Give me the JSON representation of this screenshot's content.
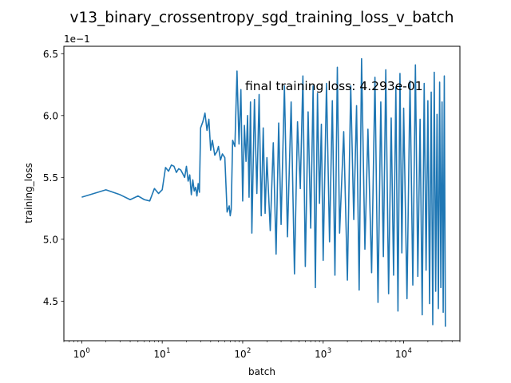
{
  "chart_data": {
    "type": "line",
    "title": "v13_binary_crossentropy_sgd_training_loss_v_batch",
    "xlabel": "batch",
    "ylabel": "training_loss",
    "x_scale": "log",
    "xlim": [
      0.6,
      50000
    ],
    "ylim": [
      0.418,
      0.656
    ],
    "y_offset_label": "1e−1",
    "annotation": "final training loss: 4.293e-01",
    "grid": false,
    "line_color": "#1f77b4",
    "xticks": [
      {
        "value": 1,
        "label": "10",
        "exp": "0"
      },
      {
        "value": 10,
        "label": "10",
        "exp": "1"
      },
      {
        "value": 100,
        "label": "10",
        "exp": "2"
      },
      {
        "value": 1000,
        "label": "10",
        "exp": "3"
      },
      {
        "value": 10000,
        "label": "10",
        "exp": "4"
      }
    ],
    "yticks": [
      {
        "value": 0.45,
        "label": "4.5"
      },
      {
        "value": 0.5,
        "label": "5.0"
      },
      {
        "value": 0.55,
        "label": "5.5"
      },
      {
        "value": 0.6,
        "label": "6.0"
      },
      {
        "value": 0.65,
        "label": "6.5"
      }
    ],
    "series": [
      {
        "x": [
          1,
          2,
          3,
          4,
          5,
          6,
          7,
          8,
          9,
          10,
          11,
          12,
          13,
          14,
          15,
          16,
          17,
          18,
          19,
          20,
          21,
          22,
          23,
          24,
          25,
          26,
          27,
          28,
          29,
          30,
          32,
          34,
          36,
          38,
          40,
          42,
          45,
          48,
          50,
          53,
          56,
          60,
          64,
          68,
          70,
          72,
          75,
          80,
          85,
          90,
          95,
          100,
          105,
          110,
          115,
          120,
          125,
          130,
          140,
          150,
          160,
          170,
          180,
          190,
          200,
          220,
          240,
          260,
          280,
          300,
          330,
          360,
          400,
          440,
          480,
          520,
          560,
          600,
          650,
          700,
          750,
          800,
          850,
          900,
          950,
          1000,
          1100,
          1200,
          1300,
          1400,
          1500,
          1600,
          1800,
          2000,
          2200,
          2400,
          2600,
          2800,
          3000,
          3300,
          3600,
          4000,
          4400,
          4800,
          5200,
          5600,
          6000,
          6500,
          7000,
          7500,
          8000,
          8500,
          9000,
          9500,
          10000,
          11000,
          12000,
          13000,
          14000,
          15000,
          16000,
          17000,
          18000,
          19000,
          20000,
          21000,
          22000,
          23000,
          24000,
          25000,
          26000,
          27000,
          28000,
          29000,
          30000,
          31000,
          32000,
          33000
        ],
        "y": [
          0.534,
          0.54,
          0.536,
          0.532,
          0.535,
          0.532,
          0.531,
          0.541,
          0.537,
          0.54,
          0.558,
          0.555,
          0.56,
          0.559,
          0.554,
          0.557,
          0.556,
          0.553,
          0.55,
          0.559,
          0.547,
          0.552,
          0.536,
          0.548,
          0.539,
          0.542,
          0.535,
          0.545,
          0.538,
          0.59,
          0.595,
          0.602,
          0.588,
          0.597,
          0.572,
          0.58,
          0.568,
          0.571,
          0.575,
          0.564,
          0.569,
          0.566,
          0.522,
          0.527,
          0.519,
          0.524,
          0.58,
          0.575,
          0.636,
          0.577,
          0.621,
          0.531,
          0.592,
          0.563,
          0.6,
          0.534,
          0.611,
          0.505,
          0.613,
          0.537,
          0.617,
          0.519,
          0.59,
          0.521,
          0.566,
          0.507,
          0.578,
          0.488,
          0.594,
          0.512,
          0.624,
          0.502,
          0.611,
          0.472,
          0.595,
          0.541,
          0.632,
          0.478,
          0.603,
          0.509,
          0.624,
          0.461,
          0.618,
          0.529,
          0.593,
          0.483,
          0.626,
          0.498,
          0.612,
          0.471,
          0.639,
          0.505,
          0.587,
          0.467,
          0.624,
          0.516,
          0.608,
          0.459,
          0.646,
          0.492,
          0.589,
          0.473,
          0.631,
          0.449,
          0.611,
          0.486,
          0.637,
          0.456,
          0.598,
          0.471,
          0.623,
          0.442,
          0.634,
          0.489,
          0.606,
          0.452,
          0.628,
          0.463,
          0.641,
          0.47,
          0.597,
          0.439,
          0.626,
          0.475,
          0.612,
          0.448,
          0.619,
          0.431,
          0.635,
          0.458,
          0.601,
          0.444,
          0.627,
          0.461,
          0.611,
          0.441,
          0.632,
          0.4293
        ]
      }
    ]
  }
}
